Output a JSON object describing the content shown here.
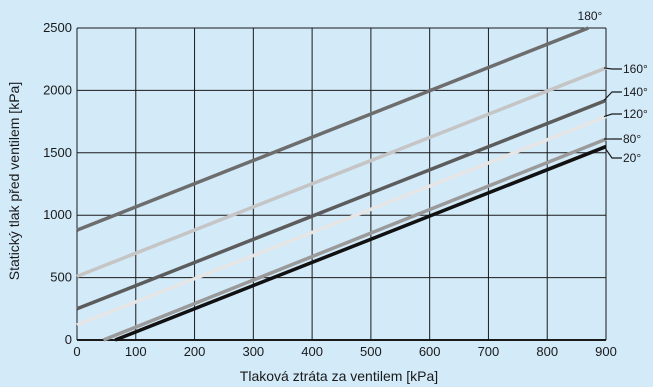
{
  "chart_data": {
    "type": "line",
    "title": "",
    "xlabel": "Tlaková ztráta za ventilem [kPa]",
    "ylabel": "Statický tlak před ventilem [kPa]",
    "xlim": [
      0,
      900
    ],
    "ylim": [
      0,
      2500
    ],
    "x_ticks": [
      "0",
      "100",
      "200",
      "300",
      "400",
      "500",
      "600",
      "700",
      "800",
      "900"
    ],
    "y_ticks": [
      "0",
      "500",
      "1000",
      "1500",
      "2000",
      "2500"
    ],
    "grid": true,
    "background_color": "#d3eaf9",
    "series": [
      {
        "name": "180°",
        "color": "#6d6d6d",
        "x": [
          0,
          870
        ],
        "y": [
          880,
          2500
        ]
      },
      {
        "name": "160°",
        "color": "#c5c5c5",
        "x": [
          0,
          900
        ],
        "y": [
          510,
          2180
        ]
      },
      {
        "name": "140°",
        "color": "#5c5c5c",
        "x": [
          0,
          900
        ],
        "y": [
          250,
          1920
        ]
      },
      {
        "name": "120°",
        "color": "#e6e6e6",
        "x": [
          0,
          900
        ],
        "y": [
          120,
          1790
        ]
      },
      {
        "name": "80°",
        "color": "#9a9a9a",
        "x": [
          45,
          900
        ],
        "y": [
          0,
          1610
        ]
      },
      {
        "name": "20°",
        "color": "#111111",
        "x": [
          65,
          900
        ],
        "y": [
          0,
          1550
        ]
      }
    ]
  }
}
